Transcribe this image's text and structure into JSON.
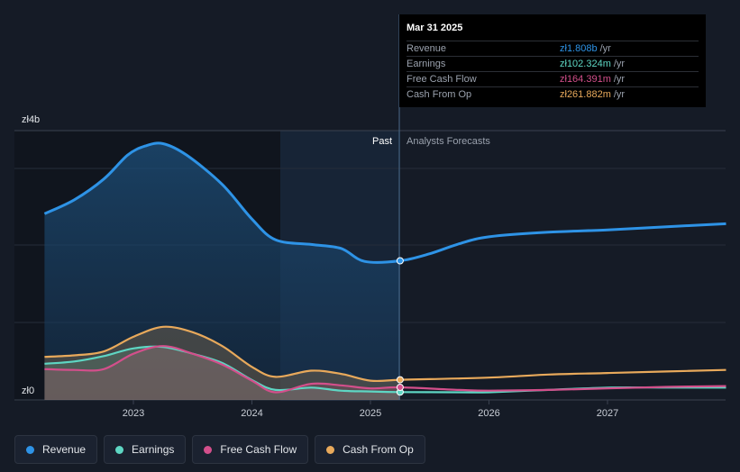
{
  "tooltip": {
    "date": "Mar 31 2025",
    "rows": [
      {
        "label": "Revenue",
        "value": "zł1.808b",
        "unit": "/yr",
        "color": "#2e93e6"
      },
      {
        "label": "Earnings",
        "value": "zł102.324m",
        "unit": "/yr",
        "color": "#5ed6c3"
      },
      {
        "label": "Free Cash Flow",
        "value": "zł164.391m",
        "unit": "/yr",
        "color": "#d34f8b"
      },
      {
        "label": "Cash From Op",
        "value": "zł261.882m",
        "unit": "/yr",
        "color": "#e8a95b"
      }
    ]
  },
  "chart_data": {
    "type": "area",
    "ylabel_top": "zł4b",
    "ylabel_bottom": "zł0",
    "ylim": [
      0,
      3.5
    ],
    "y_unit": "zł b",
    "past_label": "Past",
    "forecast_label": "Analysts Forecasts",
    "divider_x": 2025.25,
    "x_ticks": [
      2023,
      2024,
      2025,
      2026,
      2027
    ],
    "x_range": [
      2022.25,
      2028.0
    ],
    "grid": true,
    "legend_position": "bottom",
    "series": [
      {
        "name": "Revenue",
        "color": "#2e93e6",
        "forecast_from": 2025.25,
        "points": [
          [
            2022.25,
            2.42
          ],
          [
            2022.5,
            2.6
          ],
          [
            2022.75,
            2.87
          ],
          [
            2022.95,
            3.18
          ],
          [
            2023.1,
            3.3
          ],
          [
            2023.25,
            3.33
          ],
          [
            2023.45,
            3.18
          ],
          [
            2023.75,
            2.8
          ],
          [
            2024.0,
            2.35
          ],
          [
            2024.2,
            2.08
          ],
          [
            2024.5,
            2.02
          ],
          [
            2024.75,
            1.97
          ],
          [
            2024.95,
            1.8
          ],
          [
            2025.25,
            1.808
          ],
          [
            2025.5,
            1.9
          ],
          [
            2025.75,
            2.03
          ],
          [
            2026.0,
            2.12
          ],
          [
            2026.5,
            2.18
          ],
          [
            2027.0,
            2.21
          ],
          [
            2027.5,
            2.25
          ],
          [
            2028.0,
            2.29
          ]
        ]
      },
      {
        "name": "Earnings",
        "color": "#5ed6c3",
        "forecast_from": 2025.25,
        "points": [
          [
            2022.25,
            0.47
          ],
          [
            2022.5,
            0.5
          ],
          [
            2022.75,
            0.57
          ],
          [
            2023.0,
            0.67
          ],
          [
            2023.25,
            0.69
          ],
          [
            2023.5,
            0.6
          ],
          [
            2023.75,
            0.48
          ],
          [
            2024.0,
            0.26
          ],
          [
            2024.2,
            0.13
          ],
          [
            2024.5,
            0.16
          ],
          [
            2024.75,
            0.12
          ],
          [
            2025.0,
            0.11
          ],
          [
            2025.25,
            0.102
          ],
          [
            2025.75,
            0.1
          ],
          [
            2026.0,
            0.1
          ],
          [
            2026.5,
            0.13
          ],
          [
            2027.0,
            0.16
          ],
          [
            2027.5,
            0.16
          ],
          [
            2028.0,
            0.16
          ]
        ]
      },
      {
        "name": "Free Cash Flow",
        "color": "#d34f8b",
        "forecast_from": 2025.25,
        "points": [
          [
            2022.25,
            0.4
          ],
          [
            2022.5,
            0.39
          ],
          [
            2022.75,
            0.4
          ],
          [
            2023.0,
            0.6
          ],
          [
            2023.25,
            0.7
          ],
          [
            2023.5,
            0.6
          ],
          [
            2023.75,
            0.46
          ],
          [
            2024.0,
            0.25
          ],
          [
            2024.2,
            0.1
          ],
          [
            2024.5,
            0.21
          ],
          [
            2024.75,
            0.19
          ],
          [
            2025.0,
            0.15
          ],
          [
            2025.25,
            0.164
          ],
          [
            2025.75,
            0.13
          ],
          [
            2026.0,
            0.12
          ],
          [
            2026.5,
            0.13
          ],
          [
            2027.0,
            0.15
          ],
          [
            2027.5,
            0.17
          ],
          [
            2028.0,
            0.18
          ]
        ]
      },
      {
        "name": "Cash From Op",
        "color": "#e8a95b",
        "forecast_from": 2025.25,
        "points": [
          [
            2022.25,
            0.56
          ],
          [
            2022.5,
            0.58
          ],
          [
            2022.75,
            0.63
          ],
          [
            2023.0,
            0.82
          ],
          [
            2023.25,
            0.95
          ],
          [
            2023.5,
            0.88
          ],
          [
            2023.75,
            0.7
          ],
          [
            2024.0,
            0.43
          ],
          [
            2024.2,
            0.3
          ],
          [
            2024.5,
            0.38
          ],
          [
            2024.75,
            0.34
          ],
          [
            2025.0,
            0.25
          ],
          [
            2025.25,
            0.262
          ],
          [
            2025.5,
            0.27
          ],
          [
            2026.0,
            0.29
          ],
          [
            2026.5,
            0.33
          ],
          [
            2027.0,
            0.35
          ],
          [
            2027.5,
            0.37
          ],
          [
            2028.0,
            0.39
          ]
        ]
      }
    ]
  },
  "legend": [
    {
      "label": "Revenue",
      "color": "#2e93e6"
    },
    {
      "label": "Earnings",
      "color": "#5ed6c3"
    },
    {
      "label": "Free Cash Flow",
      "color": "#d34f8b"
    },
    {
      "label": "Cash From Op",
      "color": "#e8a95b"
    }
  ]
}
